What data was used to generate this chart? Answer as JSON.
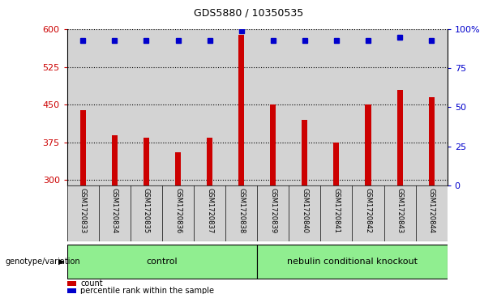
{
  "title": "GDS5880 / 10350535",
  "samples": [
    "GSM1720833",
    "GSM1720834",
    "GSM1720835",
    "GSM1720836",
    "GSM1720837",
    "GSM1720838",
    "GSM1720839",
    "GSM1720840",
    "GSM1720841",
    "GSM1720842",
    "GSM1720843",
    "GSM1720844"
  ],
  "counts": [
    440,
    390,
    385,
    355,
    385,
    590,
    450,
    420,
    375,
    450,
    480,
    465
  ],
  "percentile_ranks": [
    93,
    93,
    93,
    93,
    93,
    99,
    93,
    93,
    93,
    93,
    95,
    93
  ],
  "ylim_left": [
    290,
    600
  ],
  "ylim_right": [
    0,
    100
  ],
  "yticks_left": [
    300,
    375,
    450,
    525,
    600
  ],
  "yticks_right": [
    0,
    25,
    50,
    75,
    100
  ],
  "bar_color": "#cc0000",
  "dot_color": "#0000cc",
  "background_color": "#ffffff",
  "bar_bg_color": "#d3d3d3",
  "control_label": "control",
  "knockout_label": "nebulin conditional knockout",
  "group_color": "#90ee90",
  "genotype_label": "genotype/variation",
  "control_indices": [
    0,
    1,
    2,
    3,
    4,
    5
  ],
  "knockout_indices": [
    6,
    7,
    8,
    9,
    10,
    11
  ],
  "legend_count_label": "count",
  "legend_pct_label": "percentile rank within the sample",
  "right_ylabel_suffix": "%"
}
